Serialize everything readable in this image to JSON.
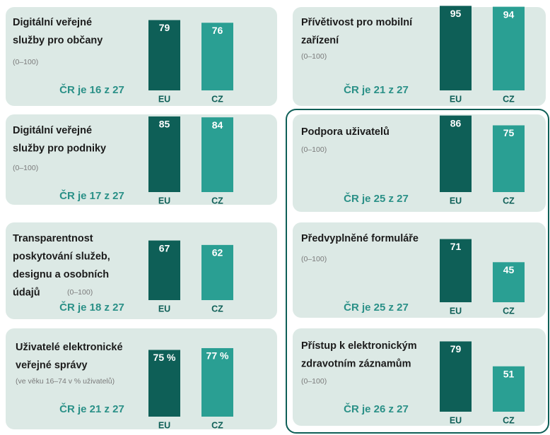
{
  "chart_data": [
    {
      "type": "bar",
      "title": [
        "Digitální veřejné",
        "služby pro občany"
      ],
      "subtitle": "(0–100)",
      "rank": "ČR je 16 z 27",
      "categories": [
        "EU",
        "CZ"
      ],
      "values": [
        79,
        76
      ],
      "colors": [
        "#0e5f57",
        "#2a9f93"
      ],
      "ylim": [
        0,
        100
      ]
    },
    {
      "type": "bar",
      "title": [
        "Digitální veřejné",
        "služby pro podniky"
      ],
      "subtitle": "(0–100)",
      "rank": "ČR je 17 z 27",
      "categories": [
        "EU",
        "CZ"
      ],
      "values": [
        85,
        84
      ],
      "colors": [
        "#0e5f57",
        "#2a9f93"
      ],
      "ylim": [
        0,
        100
      ]
    },
    {
      "type": "bar",
      "title": [
        "Transparentnost",
        "poskytování služeb,",
        "designu a osobních",
        "údajů"
      ],
      "subtitle": "(0–100)",
      "rank": "ČR je 18 z 27",
      "categories": [
        "EU",
        "CZ"
      ],
      "values": [
        67,
        62
      ],
      "colors": [
        "#0e5f57",
        "#2a9f93"
      ],
      "ylim": [
        0,
        100
      ]
    },
    {
      "type": "bar",
      "title": [
        "Uživatelé elektronické",
        "veřejné správy"
      ],
      "subtitle": "(ve věku 16–74 v % uživatelů)",
      "rank": "ČR je 21 z 27",
      "categories": [
        "EU",
        "CZ"
      ],
      "values": [
        75,
        77
      ],
      "value_labels": [
        "75 %",
        "77 %"
      ],
      "colors": [
        "#0e5f57",
        "#2a9f93"
      ],
      "ylim": [
        0,
        100
      ]
    },
    {
      "type": "bar",
      "title": [
        "Přívětivost pro mobilní",
        "zařízení"
      ],
      "subtitle": "(0–100)",
      "rank": "ČR je 21 z 27",
      "categories": [
        "EU",
        "CZ"
      ],
      "values": [
        95,
        94
      ],
      "colors": [
        "#0e5f57",
        "#2a9f93"
      ],
      "ylim": [
        0,
        100
      ]
    },
    {
      "type": "bar",
      "title": [
        "Podpora uživatelů"
      ],
      "subtitle": "(0–100)",
      "rank": "ČR je 25 z 27",
      "categories": [
        "EU",
        "CZ"
      ],
      "values": [
        86,
        75
      ],
      "colors": [
        "#0e5f57",
        "#2a9f93"
      ],
      "ylim": [
        0,
        100
      ]
    },
    {
      "type": "bar",
      "title": [
        "Předvyplněné formuláře"
      ],
      "subtitle": "(0–100)",
      "rank": "ČR je 25 z 27",
      "categories": [
        "EU",
        "CZ"
      ],
      "values": [
        71,
        45
      ],
      "colors": [
        "#0e5f57",
        "#2a9f93"
      ],
      "ylim": [
        0,
        100
      ]
    },
    {
      "type": "bar",
      "title": [
        "Přístup k elektronickým",
        "zdravotním záznamům"
      ],
      "subtitle": "(0–100)",
      "rank": "ČR je 26 z 27",
      "categories": [
        "EU",
        "CZ"
      ],
      "values": [
        79,
        51
      ],
      "colors": [
        "#0e5f57",
        "#2a9f93"
      ],
      "ylim": [
        0,
        100
      ]
    }
  ]
}
